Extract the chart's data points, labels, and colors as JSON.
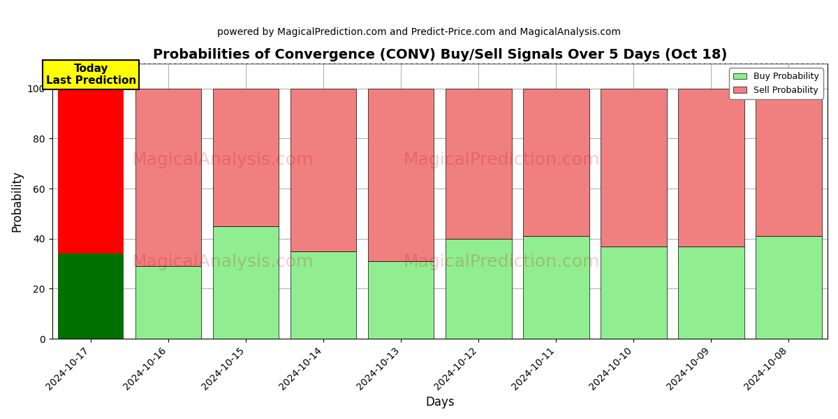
{
  "title": "Probabilities of Convergence (CONV) Buy/Sell Signals Over 5 Days (Oct 18)",
  "subtitle": "powered by MagicalPrediction.com and Predict-Price.com and MagicalAnalysis.com",
  "xlabel": "Days",
  "ylabel": "Probability",
  "dates": [
    "2024-10-17",
    "2024-10-16",
    "2024-10-15",
    "2024-10-14",
    "2024-10-13",
    "2024-10-12",
    "2024-10-11",
    "2024-10-10",
    "2024-10-09",
    "2024-10-08"
  ],
  "buy_values": [
    34,
    29,
    45,
    35,
    31,
    40,
    41,
    37,
    37,
    41
  ],
  "sell_values": [
    66,
    71,
    55,
    65,
    69,
    60,
    59,
    63,
    63,
    59
  ],
  "today_buy_color": "#007000",
  "today_sell_color": "#ff0000",
  "buy_color": "#90ee90",
  "sell_color": "#f08080",
  "today_label_bg": "#ffff00",
  "today_label_text": "Today\nLast Prediction",
  "legend_buy_label": "Buy Probability",
  "legend_sell_label": "Sell Probability",
  "ylim": [
    0,
    110
  ],
  "dashed_line_y": 110,
  "watermark_texts": [
    "MagicalAnalysis.com",
    "MagicalPrediction.com"
  ],
  "background_color": "#ffffff",
  "grid_color": "#aaaaaa",
  "bar_width": 0.85,
  "title_fontsize": 14,
  "subtitle_fontsize": 10,
  "axis_label_fontsize": 12,
  "tick_fontsize": 10
}
